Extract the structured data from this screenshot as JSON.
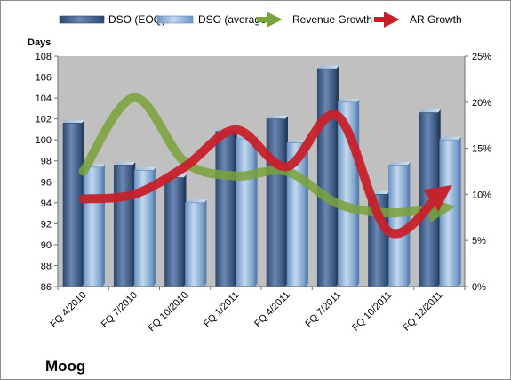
{
  "colors": {
    "eoq": "#4a6792",
    "eoq_dark": "#2c4466",
    "avg": "#8fb3db",
    "avg_dark": "#5f86b6",
    "revenue": "#7aa33a",
    "ar": "#c8202b",
    "plot_bg": "#c0c0c0"
  },
  "chart_data": {
    "type": "bar",
    "company": "Moog",
    "ylabel": "Days",
    "ylim": [
      86,
      108
    ],
    "y_ticks": [
      86,
      88,
      90,
      92,
      94,
      96,
      98,
      100,
      102,
      104,
      106,
      108
    ],
    "y2lim": [
      0,
      25
    ],
    "y2_ticks": [
      "0%",
      "5%",
      "10%",
      "15%",
      "20%",
      "25%"
    ],
    "grid": false,
    "legend_position": "top",
    "categories": [
      "FQ 4/2010",
      "FQ 7/2010",
      "FQ 10/2010",
      "FQ 1/2011",
      "FQ 4/2011",
      "FQ 7/2011",
      "FQ 10/2011",
      "FQ 12/2011"
    ],
    "series": [
      {
        "name": "DSO (EOQ)",
        "kind": "bar",
        "axis": "left",
        "values": [
          101.6,
          97.6,
          96.4,
          100.8,
          102.0,
          106.8,
          94.8,
          102.6
        ]
      },
      {
        "name": "DSO (average)",
        "kind": "bar",
        "axis": "left",
        "values": [
          97.4,
          97.1,
          94.0,
          100.1,
          99.7,
          103.6,
          97.6,
          100.0
        ]
      },
      {
        "name": "Revenue Growth",
        "kind": "line",
        "axis": "right",
        "unit": "%",
        "values": [
          12.5,
          20.5,
          13.5,
          12.0,
          12.5,
          9.0,
          8.0,
          8.5
        ]
      },
      {
        "name": "AR Growth",
        "kind": "line",
        "axis": "right",
        "unit": "%",
        "values": [
          9.5,
          10.0,
          13.0,
          17.0,
          13.0,
          18.5,
          6.0,
          10.0
        ]
      }
    ]
  }
}
